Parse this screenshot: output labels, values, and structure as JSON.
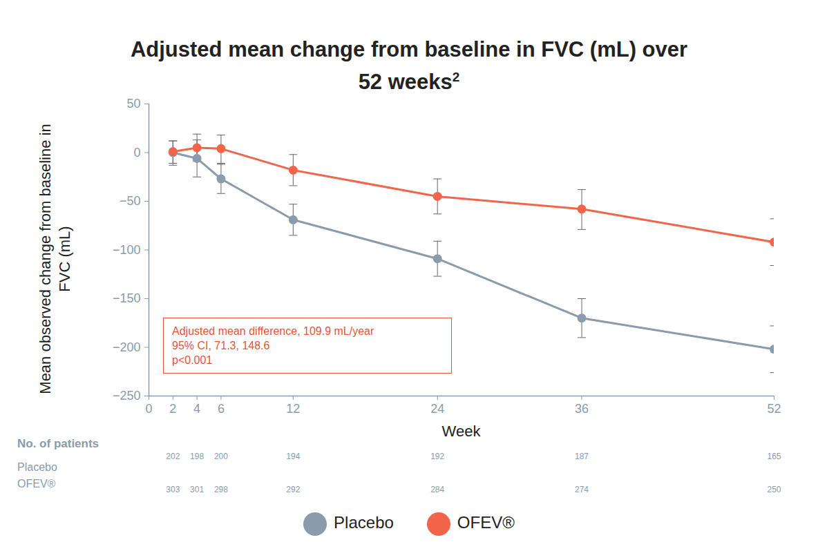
{
  "chart_data": {
    "type": "line",
    "title": "Adjusted mean change from baseline in FVC (mL) over 52 weeks",
    "title_superscript": "2",
    "x_label": "Week",
    "y_label": "Mean observed change from baseline in FVC (mL)",
    "x": [
      2,
      4,
      6,
      12,
      24,
      36,
      52
    ],
    "xlim": [
      0,
      52
    ],
    "xticks": [
      0,
      2,
      4,
      6,
      12,
      24,
      36,
      52
    ],
    "ylim": [
      -250,
      50
    ],
    "yticks": [
      -250,
      -200,
      -150,
      -100,
      -50,
      0,
      50
    ],
    "grid": false,
    "marker": "circle",
    "series": [
      {
        "name": "Placebo",
        "color": "#8a9bab",
        "values": [
          0,
          -6,
          -27,
          -69,
          -109,
          -170,
          -202
        ],
        "error_low": [
          -13,
          -25,
          -42,
          -85,
          -127,
          -190,
          -226
        ],
        "error_high": [
          12,
          13,
          -12,
          -53,
          -91,
          -150,
          -178
        ]
      },
      {
        "name": "OFEV®",
        "color": "#f2654a",
        "values": [
          1,
          5,
          4,
          -18,
          -45,
          -58,
          -92
        ],
        "error_low": [
          -11,
          -9,
          -11,
          -34,
          -63,
          -79,
          -116
        ],
        "error_high": [
          12,
          19,
          18,
          -2,
          -27,
          -38,
          -68
        ]
      }
    ],
    "annotation": [
      "Adjusted mean difference, 109.9 mL/year",
      "95% CI, 71.3, 148.6",
      "p<0.001"
    ],
    "annotation_color": "#e8533a",
    "patients": {
      "title": "No. of patients",
      "rows": [
        {
          "name": "Placebo",
          "values": [
            202,
            198,
            200,
            194,
            192,
            187,
            165
          ]
        },
        {
          "name": "OFEV®",
          "values": [
            303,
            301,
            298,
            292,
            284,
            274,
            250
          ]
        }
      ]
    }
  }
}
